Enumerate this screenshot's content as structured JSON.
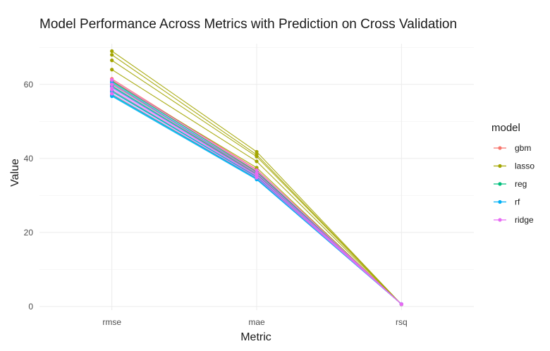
{
  "chart_data": {
    "type": "line",
    "title": "Model Performance Across Metrics with Prediction on Cross Validation",
    "xlabel": "Metric",
    "ylabel": "Value",
    "categories": [
      "rmse",
      "mae",
      "rsq"
    ],
    "yticks": [
      0,
      20,
      40,
      60
    ],
    "ylim": [
      -1,
      71
    ],
    "grid": true,
    "legend": {
      "title": "model",
      "position": "right"
    },
    "colors": {
      "gbm": "#F8766D",
      "lasso": "#A3A500",
      "reg": "#00BF7D",
      "rf": "#00B0F6",
      "ridge": "#E76BF3"
    },
    "series": [
      {
        "name": "gbm",
        "fold": 1,
        "values": [
          61.5,
          37.0,
          0.6
        ]
      },
      {
        "name": "gbm",
        "fold": 2,
        "values": [
          60.2,
          36.2,
          0.62
        ]
      },
      {
        "name": "gbm",
        "fold": 3,
        "values": [
          58.0,
          35.1,
          0.6
        ]
      },
      {
        "name": "gbm",
        "fold": 4,
        "values": [
          61.0,
          36.5,
          0.61
        ]
      },
      {
        "name": "gbm",
        "fold": 5,
        "values": [
          59.5,
          35.8,
          0.63
        ]
      },
      {
        "name": "lasso",
        "fold": 1,
        "values": [
          69.0,
          41.8,
          0.55
        ]
      },
      {
        "name": "lasso",
        "fold": 2,
        "values": [
          68.0,
          41.0,
          0.56
        ]
      },
      {
        "name": "lasso",
        "fold": 3,
        "values": [
          66.5,
          40.5,
          0.55
        ]
      },
      {
        "name": "lasso",
        "fold": 4,
        "values": [
          64.0,
          39.2,
          0.57
        ]
      },
      {
        "name": "lasso",
        "fold": 5,
        "values": [
          61.0,
          37.5,
          0.56
        ]
      },
      {
        "name": "reg",
        "fold": 1,
        "values": [
          60.8,
          36.4,
          0.6
        ]
      },
      {
        "name": "reg",
        "fold": 2,
        "values": [
          59.6,
          35.6,
          0.61
        ]
      },
      {
        "name": "reg",
        "fold": 3,
        "values": [
          58.3,
          35.0,
          0.6
        ]
      },
      {
        "name": "reg",
        "fold": 4,
        "values": [
          57.2,
          34.6,
          0.62
        ]
      },
      {
        "name": "reg",
        "fold": 5,
        "values": [
          60.0,
          35.9,
          0.6
        ]
      },
      {
        "name": "rf",
        "fold": 1,
        "values": [
          57.0,
          34.5,
          0.62
        ]
      },
      {
        "name": "rf",
        "fold": 2,
        "values": [
          58.0,
          35.0,
          0.63
        ]
      },
      {
        "name": "rf",
        "fold": 3,
        "values": [
          59.3,
          35.4,
          0.61
        ]
      },
      {
        "name": "rf",
        "fold": 4,
        "values": [
          60.5,
          36.0,
          0.62
        ]
      },
      {
        "name": "rf",
        "fold": 5,
        "values": [
          56.8,
          34.3,
          0.63
        ]
      },
      {
        "name": "ridge",
        "fold": 1,
        "values": [
          61.2,
          36.8,
          0.6
        ]
      },
      {
        "name": "ridge",
        "fold": 2,
        "values": [
          60.0,
          36.0,
          0.61
        ]
      },
      {
        "name": "ridge",
        "fold": 3,
        "values": [
          58.6,
          35.3,
          0.6
        ]
      },
      {
        "name": "ridge",
        "fold": 4,
        "values": [
          59.0,
          35.5,
          0.61
        ]
      },
      {
        "name": "ridge",
        "fold": 5,
        "values": [
          57.5,
          34.8,
          0.62
        ]
      }
    ]
  }
}
